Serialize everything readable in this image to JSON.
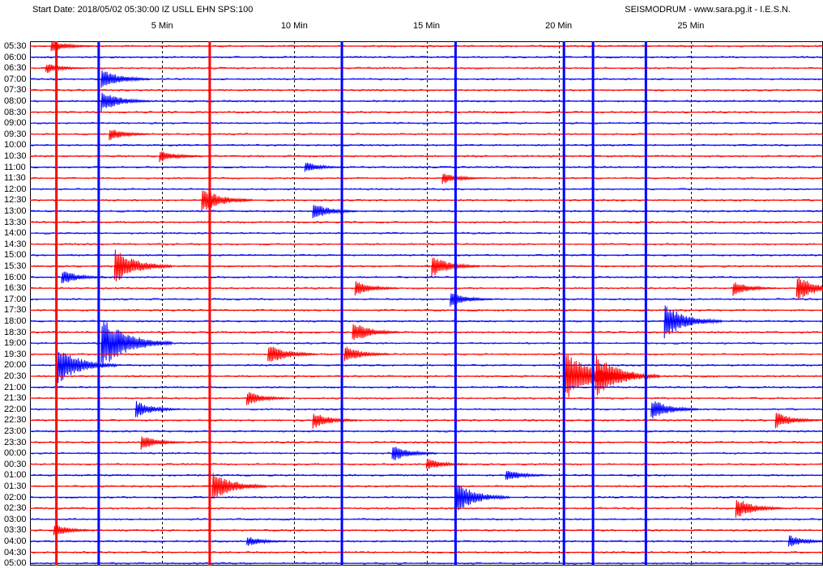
{
  "header": {
    "left": "Start Date: 2018/05/02 05:30:00 IZ USLL EHN SPS:100",
    "right": "SEISMODRUM - www.sara.pg.it - I.E.S.N."
  },
  "colors": {
    "red_trace": "#ff0000",
    "blue_trace": "#0000ff",
    "grid": "#000000",
    "frame": "#000000"
  },
  "chart_data": {
    "type": "line",
    "title": "",
    "xlabel": "",
    "ylabel": "",
    "x_unit": "minutes",
    "xlim": [
      0,
      30
    ],
    "x_ticks": [
      {
        "value": 5,
        "label": "5 Min"
      },
      {
        "value": 10,
        "label": "10 Min"
      },
      {
        "value": 15,
        "label": "15 Min"
      },
      {
        "value": 20,
        "label": "20 Min"
      },
      {
        "value": 25,
        "label": "25 Min"
      }
    ],
    "grid": true,
    "row_labels": [
      "05:30",
      "06:00",
      "06:30",
      "07:00",
      "07:30",
      "08:00",
      "08:30",
      "09:00",
      "09:30",
      "10:00",
      "10:30",
      "11:00",
      "11:30",
      "12:00",
      "12:30",
      "13:00",
      "13:30",
      "14:00",
      "14:30",
      "15:00",
      "15:30",
      "16:00",
      "16:30",
      "17:00",
      "17:30",
      "18:00",
      "18:30",
      "19:00",
      "19:30",
      "20:00",
      "20:30",
      "21:00",
      "21:30",
      "22:00",
      "22:30",
      "23:00",
      "23:30",
      "00:00",
      "00:30",
      "01:00",
      "01:30",
      "02:00",
      "02:30",
      "03:00",
      "03:30",
      "04:00",
      "04:30",
      "05:00"
    ],
    "row_colors": [
      "red",
      "blue"
    ],
    "events": [
      {
        "row": "05:30",
        "minute": 0.8,
        "amp": 0.6
      },
      {
        "row": "06:30",
        "minute": 0.6,
        "amp": 0.5
      },
      {
        "row": "07:00",
        "minute": 2.7,
        "amp": 1.0
      },
      {
        "row": "08:00",
        "minute": 2.7,
        "amp": 1.0
      },
      {
        "row": "09:30",
        "minute": 3.0,
        "amp": 0.6
      },
      {
        "row": "10:30",
        "minute": 4.9,
        "amp": 0.6
      },
      {
        "row": "11:00",
        "minute": 10.4,
        "amp": 0.5
      },
      {
        "row": "11:30",
        "minute": 15.6,
        "amp": 0.6
      },
      {
        "row": "12:30",
        "minute": 6.5,
        "amp": 1.2
      },
      {
        "row": "13:00",
        "minute": 10.7,
        "amp": 0.8
      },
      {
        "row": "15:30",
        "minute": 3.2,
        "amp": 1.6
      },
      {
        "row": "15:30",
        "minute": 15.2,
        "amp": 1.0
      },
      {
        "row": "16:00",
        "minute": 1.2,
        "amp": 0.7
      },
      {
        "row": "16:30",
        "minute": 12.3,
        "amp": 0.7
      },
      {
        "row": "16:30",
        "minute": 26.6,
        "amp": 0.7
      },
      {
        "row": "16:30",
        "minute": 29.0,
        "amp": 1.2
      },
      {
        "row": "17:00",
        "minute": 15.9,
        "amp": 0.7
      },
      {
        "row": "18:00",
        "minute": 24.0,
        "amp": 1.6
      },
      {
        "row": "18:30",
        "minute": 12.2,
        "amp": 1.0
      },
      {
        "row": "19:00",
        "minute": 2.7,
        "amp": 2.4
      },
      {
        "row": "19:30",
        "minute": 9.0,
        "amp": 1.0
      },
      {
        "row": "19:30",
        "minute": 11.9,
        "amp": 0.8
      },
      {
        "row": "20:00",
        "minute": 1.0,
        "amp": 1.8
      },
      {
        "row": "20:30",
        "minute": 20.2,
        "amp": 2.4
      },
      {
        "row": "20:30",
        "minute": 21.4,
        "amp": 2.0
      },
      {
        "row": "21:30",
        "minute": 8.2,
        "amp": 0.7
      },
      {
        "row": "22:00",
        "minute": 4.0,
        "amp": 0.8
      },
      {
        "row": "22:00",
        "minute": 23.5,
        "amp": 1.0
      },
      {
        "row": "22:30",
        "minute": 10.7,
        "amp": 0.8
      },
      {
        "row": "22:30",
        "minute": 28.2,
        "amp": 0.8
      },
      {
        "row": "23:30",
        "minute": 4.2,
        "amp": 0.7
      },
      {
        "row": "00:00",
        "minute": 13.7,
        "amp": 0.8
      },
      {
        "row": "00:30",
        "minute": 15.0,
        "amp": 0.6
      },
      {
        "row": "01:00",
        "minute": 18.0,
        "amp": 0.6
      },
      {
        "row": "01:30",
        "minute": 6.9,
        "amp": 1.4
      },
      {
        "row": "02:00",
        "minute": 16.1,
        "amp": 1.4
      },
      {
        "row": "02:30",
        "minute": 26.7,
        "amp": 1.0
      },
      {
        "row": "03:30",
        "minute": 0.9,
        "amp": 0.6
      },
      {
        "row": "04:00",
        "minute": 8.2,
        "amp": 0.5
      },
      {
        "row": "04:00",
        "minute": 28.7,
        "amp": 0.6
      }
    ],
    "saturated_traces": [
      {
        "minute": 2.6,
        "color": "blue"
      },
      {
        "minute": 20.2,
        "color": "blue"
      },
      {
        "minute": 21.3,
        "color": "blue"
      },
      {
        "minute": 23.3,
        "color": "blue"
      },
      {
        "minute": 1.0,
        "color": "red"
      },
      {
        "minute": 6.8,
        "color": "red"
      },
      {
        "minute": 11.8,
        "color": "blue"
      },
      {
        "minute": 16.1,
        "color": "blue"
      }
    ]
  }
}
